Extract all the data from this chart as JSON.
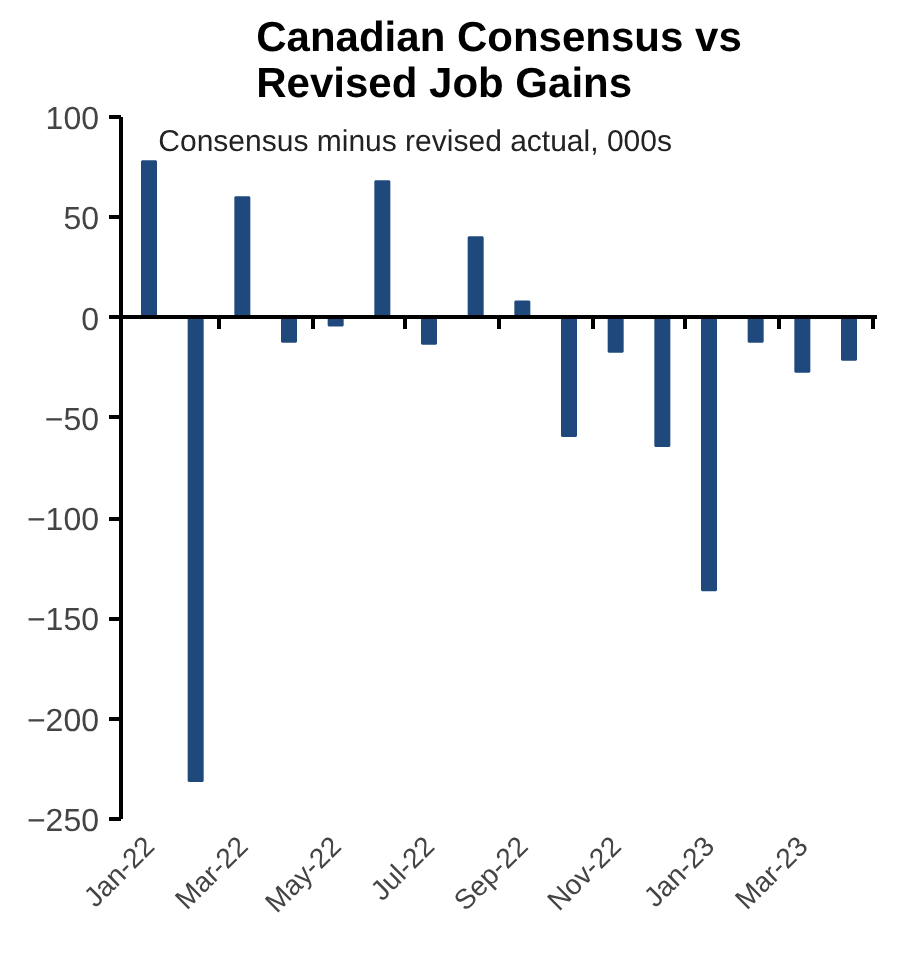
{
  "chart_data": {
    "type": "bar",
    "title": "Canadian Consensus vs Revised Job Gains",
    "subtitle": "Consensus minus revised actual, 000s",
    "categories": [
      "Jan-22",
      null,
      "Mar-22",
      null,
      "May-22",
      null,
      "Jul-22",
      null,
      "Sep-22",
      null,
      "Nov-22",
      null,
      "Jan-23",
      null,
      "Mar-23",
      null
    ],
    "values": [
      78,
      -231,
      60,
      -12,
      -4,
      68,
      -13,
      40,
      8,
      -59,
      -17,
      -64,
      -136,
      -12,
      -27,
      -21
    ],
    "color": "#1f497d",
    "ylim": [
      -250,
      100
    ],
    "yticks": [
      -250,
      -200,
      -150,
      -100,
      -50,
      0,
      50,
      100
    ]
  }
}
